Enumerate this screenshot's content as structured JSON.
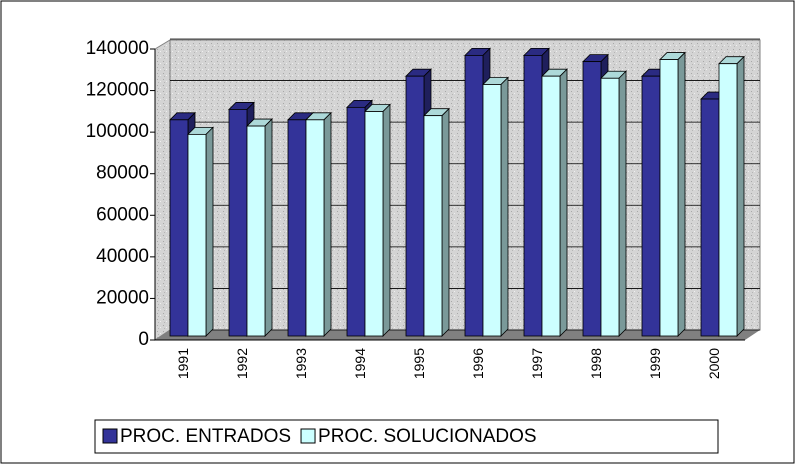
{
  "chart_data": {
    "type": "bar3d",
    "categories": [
      "1991",
      "1992",
      "1993",
      "1994",
      "1995",
      "1996",
      "1997",
      "1998",
      "1999",
      "2000"
    ],
    "series": [
      {
        "name": "PROC. ENTRADOS",
        "color": "#333399",
        "values": [
          104000,
          109000,
          104000,
          110000,
          125000,
          135000,
          135000,
          132000,
          125000,
          114000
        ]
      },
      {
        "name": "PROC. SOLUCIONADOS",
        "color": "#ccffff",
        "values": [
          97000,
          101000,
          104000,
          108000,
          106000,
          121000,
          125000,
          124000,
          133000,
          131000
        ]
      }
    ],
    "ylim": [
      0,
      140000
    ],
    "yticks": [
      0,
      20000,
      40000,
      60000,
      80000,
      100000,
      120000,
      140000
    ],
    "grid": true,
    "legend": "bottom"
  }
}
